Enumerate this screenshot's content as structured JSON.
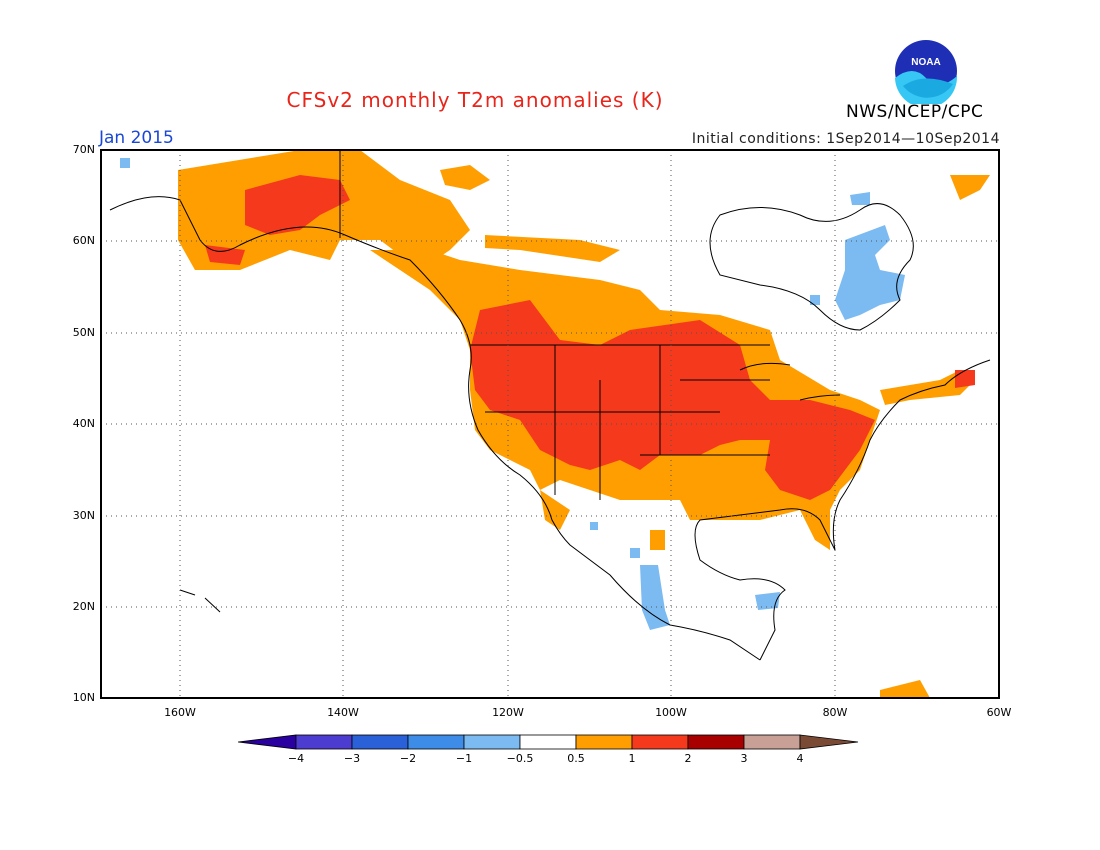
{
  "title": "CFSv2 monthly T2m anomalies (K)",
  "agency": "NWS/NCEP/CPC",
  "logo_text": "NOAA",
  "valid_month": "Jan 2015",
  "initial_conditions": "Initial conditions:  1Sep2014—10Sep2014",
  "lat_labels": [
    "70N",
    "60N",
    "50N",
    "40N",
    "30N",
    "20N",
    "10N"
  ],
  "lon_labels": [
    "160W",
    "140W",
    "120W",
    "100W",
    "80W",
    "60W"
  ],
  "colorbar": {
    "labels": [
      "−4",
      "−3",
      "−2",
      "−1",
      "−0.5",
      "0.5",
      "1",
      "2",
      "3",
      "4"
    ],
    "colors": [
      "#2a00a0",
      "#4c3cd0",
      "#2a60d8",
      "#3d8de8",
      "#7cbaf2",
      "#ffffff",
      "#ff9e00",
      "#f5391c",
      "#a80000",
      "#c8a095",
      "#7a4a35"
    ]
  },
  "anomaly_regions": [
    {
      "region": "Alaska",
      "category": "0.5 to 1 / 1 to 2"
    },
    {
      "region": "Western and Central US",
      "category": "1 to 2"
    },
    {
      "region": "Southeastern US",
      "category": "1 to 2"
    },
    {
      "region": "Hudson Bay",
      "category": "-1 to -0.5"
    },
    {
      "region": "Mexico interior",
      "category": "-1 to -0.5"
    }
  ]
}
